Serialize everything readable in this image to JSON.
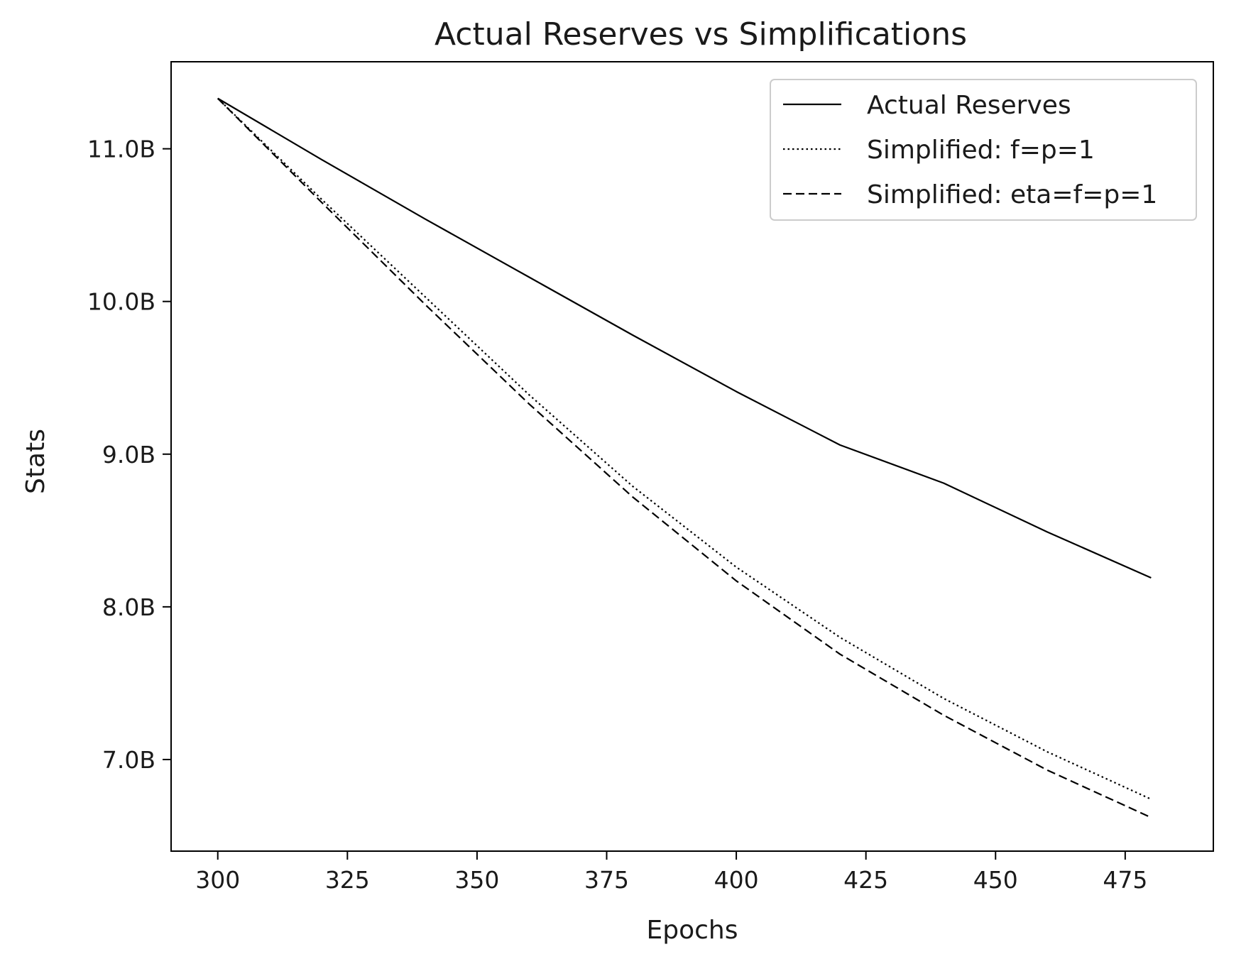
{
  "chart_data": {
    "type": "line",
    "title": "Actual Reserves vs Simplifications",
    "xlabel": "Epochs",
    "ylabel": "Stats",
    "xlim": [
      291,
      492
    ],
    "ylim": [
      6.4,
      11.57
    ],
    "xticks": [
      300,
      325,
      350,
      375,
      400,
      425,
      450,
      475
    ],
    "yticks": [
      7.0,
      8.0,
      9.0,
      10.0,
      11.0
    ],
    "ytick_labels": [
      "7.0B",
      "8.0B",
      "9.0B",
      "10.0B",
      "11.0B"
    ],
    "y_unit": "billions",
    "grid": false,
    "legend_position": "top-right",
    "x": [
      300,
      320,
      340,
      360,
      380,
      400,
      420,
      440,
      460,
      480
    ],
    "series": [
      {
        "name": "Actual Reserves",
        "style": "solid",
        "color": "#000000",
        "values": [
          11.33,
          10.93,
          10.54,
          10.16,
          9.78,
          9.41,
          9.06,
          8.81,
          8.49,
          8.19
        ]
      },
      {
        "name": "Simplified: f=p=1",
        "style": "dotted",
        "color": "#000000",
        "values": [
          11.33,
          10.67,
          10.03,
          9.39,
          8.79,
          8.26,
          7.8,
          7.4,
          7.05,
          6.74
        ]
      },
      {
        "name": "Simplified: eta=f=p=1",
        "style": "dashed",
        "color": "#000000",
        "values": [
          11.33,
          10.65,
          9.98,
          9.33,
          8.72,
          8.17,
          7.69,
          7.29,
          6.93,
          6.62
        ]
      }
    ]
  }
}
